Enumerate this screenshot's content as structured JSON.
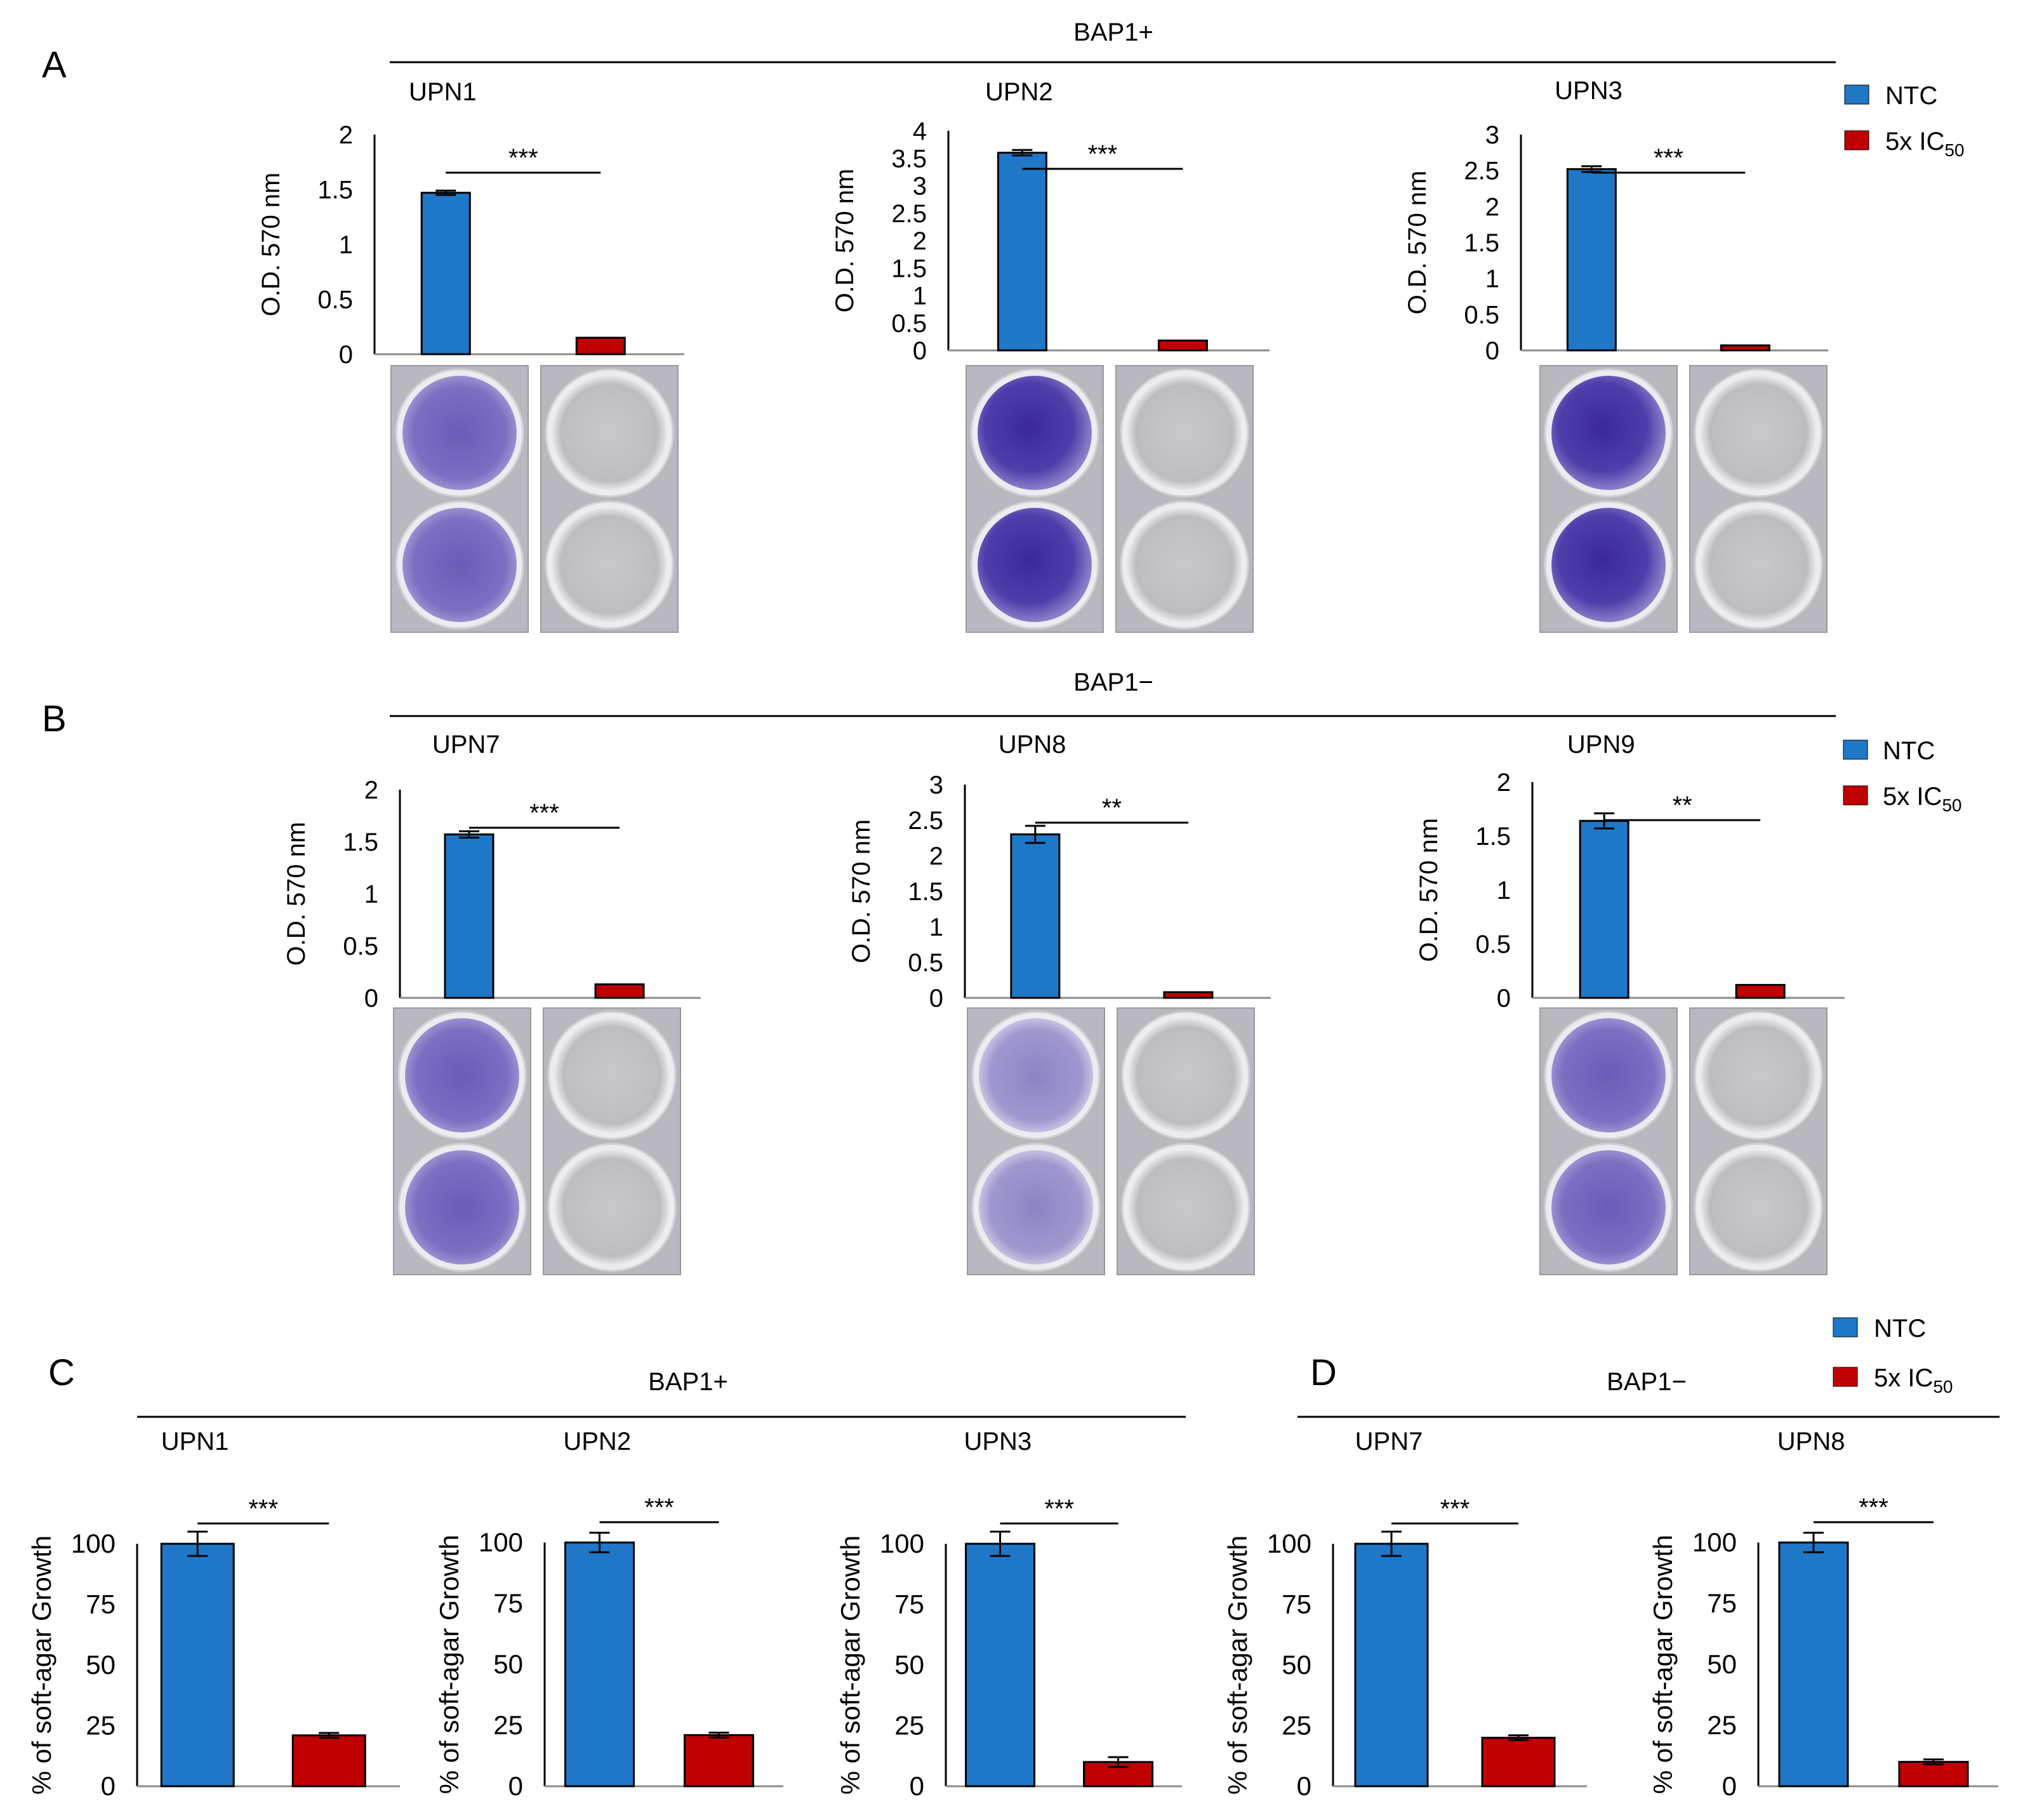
{
  "colors": {
    "ntc": "#1f77c8",
    "treated": "#c00000",
    "axis": "#8c8c8c",
    "text": "#000000",
    "stain": "#5b4aa8"
  },
  "panels": [
    {
      "letter": "A",
      "group": "BAP1+"
    },
    {
      "letter": "B",
      "group": "BAP1−"
    },
    {
      "letter": "C",
      "group": "BAP1+"
    },
    {
      "letter": "D",
      "group": "BAP1−"
    }
  ],
  "legend": [
    {
      "entries": [
        {
          "label": "NTC",
          "color_key": "ntc"
        },
        {
          "label": "5x IC",
          "sub": "50",
          "color_key": "treated"
        }
      ]
    },
    {
      "entries": [
        {
          "label": "NTC",
          "color_key": "ntc"
        },
        {
          "label": "5x IC",
          "sub": "50",
          "color_key": "treated"
        }
      ]
    },
    {
      "entries": [
        {
          "label": "NTC",
          "color_key": "ntc"
        },
        {
          "label": "5x IC",
          "sub": "50",
          "color_key": "treated"
        }
      ]
    }
  ],
  "chart_data": [
    {
      "type": "bar",
      "title": "UPN1",
      "ylabel": "O.D. 570 nm",
      "ylim": [
        0,
        2
      ],
      "yticks": [
        "0",
        "0.5",
        "1",
        "1.5",
        "2"
      ],
      "series": [
        {
          "name": "NTC",
          "value": 1.47,
          "error": 0.02
        },
        {
          "name": "5x IC50",
          "value": 0.15,
          "error": 0.0
        }
      ],
      "significance": "***"
    },
    {
      "type": "bar",
      "title": "UPN2",
      "ylabel": "O.D. 570 nm",
      "ylim": [
        0,
        4
      ],
      "yticks": [
        "0",
        "0.5",
        "1",
        "1.5",
        "2",
        "2.5",
        "3",
        "3.5",
        "4"
      ],
      "series": [
        {
          "name": "NTC",
          "value": 3.6,
          "error": 0.05
        },
        {
          "name": "5x IC50",
          "value": 0.18,
          "error": 0.0
        }
      ],
      "significance": "***"
    },
    {
      "type": "bar",
      "title": "UPN3",
      "ylabel": "O.D. 570 nm",
      "ylim": [
        0,
        3
      ],
      "yticks": [
        "0",
        "0.5",
        "1",
        "1.5",
        "2",
        "2.5",
        "3"
      ],
      "series": [
        {
          "name": "NTC",
          "value": 2.52,
          "error": 0.04
        },
        {
          "name": "5x IC50",
          "value": 0.07,
          "error": 0.0
        }
      ],
      "significance": "***"
    },
    {
      "type": "bar",
      "title": "UPN7",
      "ylabel": "O.D. 570 nm",
      "ylim": [
        0,
        2
      ],
      "yticks": [
        "0",
        "0.5",
        "1",
        "1.5",
        "2"
      ],
      "series": [
        {
          "name": "NTC",
          "value": 1.57,
          "error": 0.03
        },
        {
          "name": "5x IC50",
          "value": 0.13,
          "error": 0.0
        }
      ],
      "significance": "***"
    },
    {
      "type": "bar",
      "title": "UPN8",
      "ylabel": "O.D. 570 nm",
      "ylim": [
        0,
        3
      ],
      "yticks": [
        "0",
        "0.5",
        "1",
        "1.5",
        "2",
        "2.5",
        "3"
      ],
      "series": [
        {
          "name": "NTC",
          "value": 2.3,
          "error": 0.12
        },
        {
          "name": "5x IC50",
          "value": 0.08,
          "error": 0.0
        }
      ],
      "significance": "**"
    },
    {
      "type": "bar",
      "title": "UPN9",
      "ylabel": "O.D. 570 nm",
      "ylim": [
        0,
        2
      ],
      "yticks": [
        "0",
        "0.5",
        "1",
        "1.5",
        "2"
      ],
      "series": [
        {
          "name": "NTC",
          "value": 1.64,
          "error": 0.07
        },
        {
          "name": "5x IC50",
          "value": 0.12,
          "error": 0.0
        }
      ],
      "significance": "**"
    },
    {
      "type": "bar",
      "title": "UPN1",
      "ylabel": "% of soft-agar Growth",
      "ylim": [
        0,
        100
      ],
      "yticks": [
        "0",
        "25",
        "50",
        "75",
        "100"
      ],
      "series": [
        {
          "name": "NTC",
          "value": 100,
          "error": 5
        },
        {
          "name": "5x IC50",
          "value": 21,
          "error": 1
        }
      ],
      "significance": "***"
    },
    {
      "type": "bar",
      "title": "UPN2",
      "ylabel": "% of soft-agar Growth",
      "ylim": [
        0,
        100
      ],
      "yticks": [
        "0",
        "25",
        "50",
        "75",
        "100"
      ],
      "series": [
        {
          "name": "NTC",
          "value": 100,
          "error": 4
        },
        {
          "name": "5x IC50",
          "value": 21,
          "error": 1
        }
      ],
      "significance": "***"
    },
    {
      "type": "bar",
      "title": "UPN3",
      "ylabel": "% of soft-agar Growth",
      "ylim": [
        0,
        100
      ],
      "yticks": [
        "0",
        "25",
        "50",
        "75",
        "100"
      ],
      "series": [
        {
          "name": "NTC",
          "value": 100,
          "error": 5
        },
        {
          "name": "5x IC50",
          "value": 10,
          "error": 2
        }
      ],
      "significance": "***"
    },
    {
      "type": "bar",
      "title": "UPN7",
      "ylabel": "% of soft-agar Growth",
      "ylim": [
        0,
        100
      ],
      "yticks": [
        "0",
        "25",
        "50",
        "75",
        "100"
      ],
      "series": [
        {
          "name": "NTC",
          "value": 100,
          "error": 5
        },
        {
          "name": "5x IC50",
          "value": 20,
          "error": 1
        }
      ],
      "significance": "***"
    },
    {
      "type": "bar",
      "title": "UPN8",
      "ylabel": "% of soft-agar Growth",
      "ylim": [
        0,
        100
      ],
      "yticks": [
        "0",
        "25",
        "50",
        "75",
        "100"
      ],
      "series": [
        {
          "name": "NTC",
          "value": 100,
          "error": 4
        },
        {
          "name": "5x IC50",
          "value": 10,
          "error": 1
        }
      ],
      "significance": "***"
    }
  ],
  "plates": [
    {
      "stained": [
        true,
        true
      ],
      "intensity": "medium"
    },
    {
      "stained": [
        true,
        true
      ],
      "intensity": "dark"
    },
    {
      "stained": [
        true,
        true
      ],
      "intensity": "dark"
    },
    {
      "stained": [
        true,
        true
      ],
      "intensity": "medium"
    },
    {
      "stained": [
        true,
        true
      ],
      "intensity": "light"
    },
    {
      "stained": [
        true,
        true
      ],
      "intensity": "medium"
    }
  ]
}
